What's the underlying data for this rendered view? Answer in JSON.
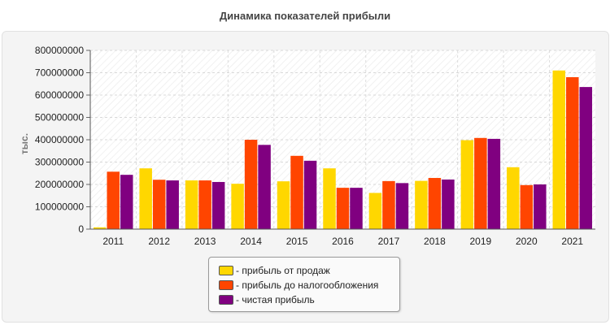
{
  "chart_data": {
    "type": "bar",
    "title": "Динамика показателей прибыли",
    "xlabel": "",
    "ylabel": "тыс.",
    "ylim": [
      0,
      800000000
    ],
    "yticks": [
      "0",
      "100000000",
      "200000000",
      "300000000",
      "400000000",
      "500000000",
      "600000000",
      "700000000",
      "800000000"
    ],
    "grid": true,
    "legend_position": "bottom",
    "categories": [
      "2011",
      "2012",
      "2013",
      "2014",
      "2015",
      "2016",
      "2017",
      "2018",
      "2019",
      "2020",
      "2021"
    ],
    "series": [
      {
        "name": "- прибыль от продаж",
        "color": "#ffd700",
        "values": [
          8000000,
          272000000,
          218000000,
          203000000,
          214000000,
          272000000,
          162000000,
          216000000,
          398000000,
          277000000,
          710000000
        ]
      },
      {
        "name": "- прибыль до налогообложения",
        "color": "#ff4500",
        "values": [
          257000000,
          221000000,
          218000000,
          400000000,
          328000000,
          185000000,
          215000000,
          229000000,
          408000000,
          197000000,
          680000000
        ]
      },
      {
        "name": "- чистая прибыль",
        "color": "#800080",
        "values": [
          243000000,
          218000000,
          211000000,
          377000000,
          306000000,
          185000000,
          206000000,
          222000000,
          404000000,
          200000000,
          636000000
        ]
      }
    ]
  }
}
